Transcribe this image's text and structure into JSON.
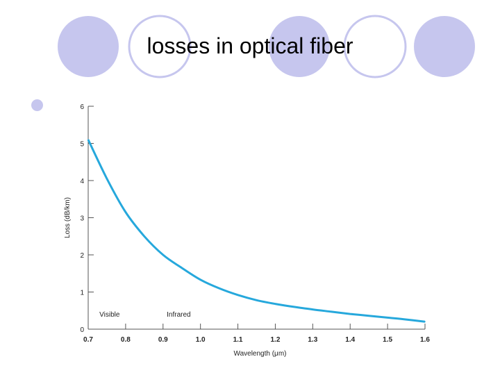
{
  "slide": {
    "title": "losses in optical fiber",
    "colors": {
      "circle_fill": "#c6c6ee",
      "circle_stroke": "#c6c6ee",
      "curve": "#26a8dc",
      "axis": "#555555"
    }
  },
  "chart_data": {
    "type": "line",
    "title": "",
    "xlabel": "Wavelength (μm)",
    "ylabel": "Loss (dB/km)",
    "xlim": [
      0.7,
      1.6
    ],
    "ylim": [
      0,
      6
    ],
    "xticks": [
      "0.7",
      "0.8",
      "0.9",
      "1.0",
      "1.1",
      "1.2",
      "1.3",
      "1.4",
      "1.5",
      "1.6"
    ],
    "yticks": [
      "0",
      "1",
      "2",
      "3",
      "4",
      "5",
      "6"
    ],
    "region_labels": [
      {
        "text": "Visible",
        "x": 0.73
      },
      {
        "text": "Infrared",
        "x": 0.91
      }
    ],
    "series": [
      {
        "color": "#26a8dc",
        "x": [
          0.7,
          0.75,
          0.8,
          0.85,
          0.9,
          0.95,
          1.0,
          1.05,
          1.1,
          1.15,
          1.2,
          1.25,
          1.3,
          1.35,
          1.4,
          1.45,
          1.5,
          1.55,
          1.6
        ],
        "y": [
          5.1,
          4.05,
          3.15,
          2.5,
          2.0,
          1.65,
          1.33,
          1.1,
          0.92,
          0.78,
          0.68,
          0.6,
          0.53,
          0.47,
          0.41,
          0.36,
          0.31,
          0.26,
          0.2
        ]
      }
    ]
  }
}
